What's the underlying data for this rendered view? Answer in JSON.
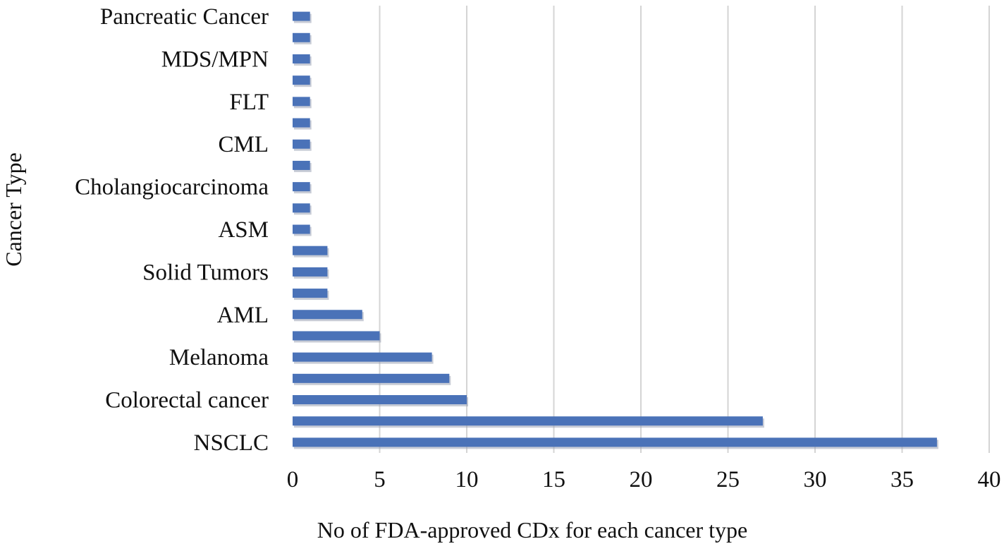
{
  "chart_data": {
    "type": "bar",
    "orientation": "horizontal",
    "xlabel": "No of FDA-approved CDx for each cancer type",
    "ylabel": "Cancer Type",
    "xlim": [
      0,
      40
    ],
    "xticks": [
      "0",
      "5",
      "10",
      "15",
      "20",
      "25",
      "30",
      "35",
      "40"
    ],
    "grid": "vertical",
    "legend": "none",
    "bar_color": "#4a72b8",
    "categories": [
      "Pancreatic Cancer",
      "",
      "MDS/MPN",
      "",
      "FLT",
      "",
      "CML",
      "",
      "Cholangiocarcinoma",
      "",
      "ASM",
      "",
      "Solid Tumors",
      "",
      "AML",
      "",
      "Melanoma",
      "",
      "Colorectal cancer",
      "",
      "NSCLC"
    ],
    "values": [
      1,
      1,
      1,
      1,
      1,
      1,
      1,
      1,
      1,
      1,
      1,
      2,
      2,
      2,
      4,
      5,
      8,
      9,
      10,
      27,
      37
    ]
  }
}
